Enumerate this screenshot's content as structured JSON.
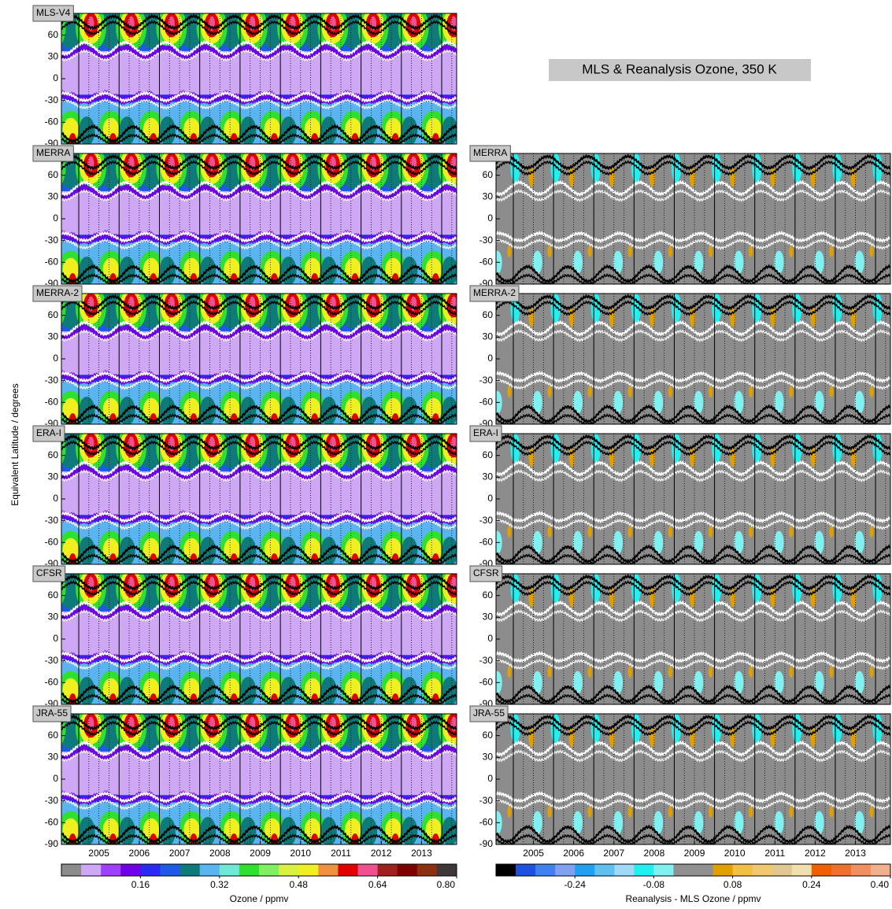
{
  "chart_data": {
    "type": "contour",
    "title": "MLS & Reanalysis Ozone, 350 K",
    "ylabel": "Equivalent Latitude / degrees",
    "ylim": [
      -90,
      90
    ],
    "yticks": [
      -90,
      -60,
      -30,
      0,
      30,
      60
    ],
    "xlim": [
      2004.57,
      2014.37
    ],
    "xticks": [
      {
        "value": 2005.5,
        "label": "2005"
      },
      {
        "value": 2006.5,
        "label": "2006"
      },
      {
        "value": 2007.5,
        "label": "2007"
      },
      {
        "value": 2008.5,
        "label": "2008"
      },
      {
        "value": 2009.5,
        "label": "2009"
      },
      {
        "value": 2010.5,
        "label": "2010"
      },
      {
        "value": 2011.5,
        "label": "2011"
      },
      {
        "value": 2012.5,
        "label": "2012"
      },
      {
        "value": 2013.5,
        "label": "2013"
      }
    ],
    "panels": [
      {
        "label": "MLS-V4",
        "side": "left",
        "row": 0
      },
      {
        "label": "MERRA",
        "side": "left",
        "row": 1
      },
      {
        "label": "MERRA",
        "side": "right",
        "row": 1
      },
      {
        "label": "MERRA-2",
        "side": "left",
        "row": 2
      },
      {
        "label": "MERRA-2",
        "side": "right",
        "row": 2
      },
      {
        "label": "ERA-I",
        "side": "left",
        "row": 3
      },
      {
        "label": "ERA-I",
        "side": "right",
        "row": 3
      },
      {
        "label": "CFSR",
        "side": "left",
        "row": 4
      },
      {
        "label": "CFSR",
        "side": "right",
        "row": 4
      },
      {
        "label": "JRA-55",
        "side": "left",
        "row": 5
      },
      {
        "label": "JRA-55",
        "side": "right",
        "row": 5
      }
    ],
    "colorbars": [
      {
        "side": "left",
        "label": "Ozone / ppmv",
        "lim": [
          0,
          0.8
        ],
        "ticks": [
          0.16,
          0.32,
          0.48,
          0.64,
          {
            "value": 0.8,
            "label": "0.80"
          }
        ],
        "colors": [
          "#8c8c8c",
          "#cfa8f5",
          "#a040ff",
          "#7000e8",
          "#2a2af5",
          "#1e5ae6",
          "#0f7a7a",
          "#5ab4f0",
          "#70e8d8",
          "#30e030",
          "#80f060",
          "#d8f040",
          "#f0f020",
          "#f09040",
          "#e00000",
          "#f05090",
          "#a02020",
          "#800000",
          "#8b3010",
          "#403838"
        ]
      },
      {
        "side": "right",
        "label": "Reanalysis - MLS Ozone / ppmv",
        "lim": [
          -0.4,
          0.4
        ],
        "ticks": [
          -0.24,
          -0.08,
          0.08,
          0.24,
          {
            "value": 0.4,
            "label": "0.40"
          }
        ],
        "colors": [
          "#000000",
          "#2050e0",
          "#4080f0",
          "#80a0f0",
          "#20a0f0",
          "#60c0f0",
          "#a0d8f8",
          "#20f0f0",
          "#80f0f0",
          "#909090",
          "#909090",
          "#e0a000",
          "#f0c040",
          "#f0c870",
          "#e0c890",
          "#f0e0b0",
          "#f06000",
          "#f07030",
          "#f09060",
          "#f0b090"
        ]
      }
    ]
  }
}
